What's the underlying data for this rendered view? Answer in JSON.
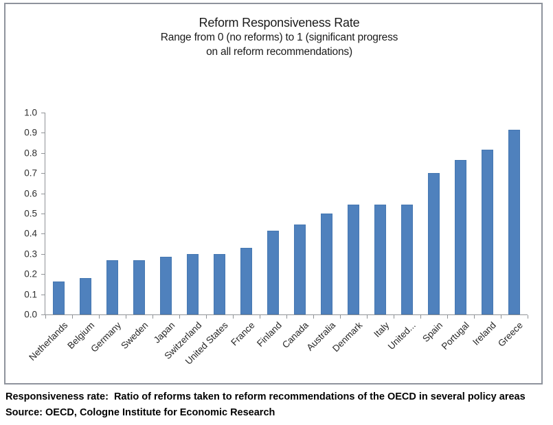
{
  "chart": {
    "title": "Reform Responsiveness Rate",
    "subtitle_lines": [
      "Range from 0 (no reforms) to 1 (significant progress",
      "on all reform recommendations)"
    ]
  },
  "chart_data": {
    "type": "bar",
    "title": "Reform Responsiveness Rate",
    "subtitle": "Range from 0 (no reforms) to 1 (significant progress on all reform recommendations)",
    "categories": [
      "Netherlands",
      "Belgium",
      "Germany",
      "Sweden",
      "Japan",
      "Switzerland",
      "United States",
      "France",
      "Finland",
      "Canada",
      "Australia",
      "Denmark",
      "Italy",
      "United...",
      "Spain",
      "Portugal",
      "Ireland",
      "Greece"
    ],
    "values": [
      0.165,
      0.18,
      0.27,
      0.27,
      0.285,
      0.3,
      0.3,
      0.33,
      0.415,
      0.445,
      0.5,
      0.545,
      0.545,
      0.545,
      0.7,
      0.765,
      0.815,
      0.915
    ],
    "bar_color": "#4f81bd",
    "xlabel": "",
    "ylabel": "",
    "ylim": [
      0.0,
      1.0
    ],
    "ytick_step": 0.1,
    "ytick_decimals": 1,
    "grid": false,
    "legend": "none",
    "x_label_rotation_deg": -45
  },
  "footer": {
    "note": "Responsiveness rate:  Ratio of reforms taken to reform recommendations of the OECD in several policy areas",
    "source": "Source: OECD, Cologne Institute for Economic Research"
  }
}
